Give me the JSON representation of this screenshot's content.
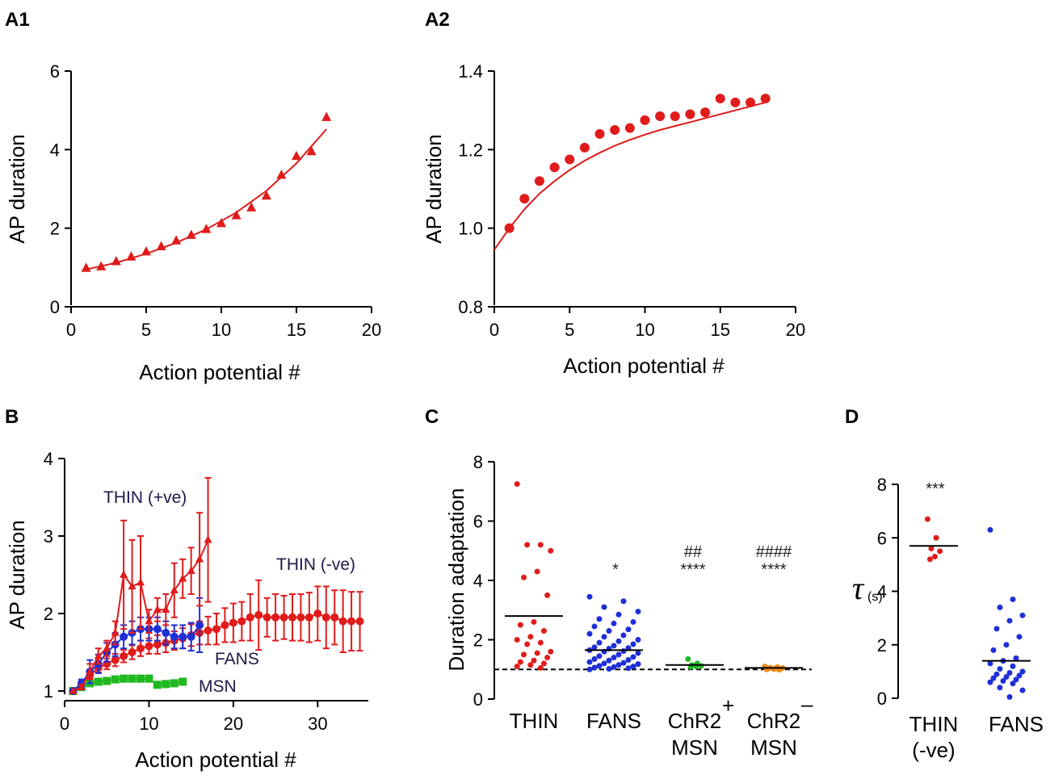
{
  "colors": {
    "thin": "#e01b1b",
    "fans": "#1f2fd6",
    "msn": "#1fb81f",
    "chr2neg": "#f08a1a",
    "axis": "#000000"
  },
  "chart_data": [
    {
      "type": "scatter",
      "panel": "A1",
      "marker": "triangle",
      "xlabel": "Action potential #",
      "ylabel": "AP duration",
      "xlim": [
        0,
        20
      ],
      "ylim": [
        0,
        6
      ],
      "xticks": [
        "0",
        "5",
        "10",
        "15",
        "20"
      ],
      "yticks": [
        "0",
        "2",
        "4",
        "6"
      ],
      "x": [
        1,
        2,
        3,
        4,
        5,
        6,
        7,
        8,
        9,
        10,
        11,
        12,
        13,
        14,
        15,
        16,
        17
      ],
      "y": [
        0.98,
        1.02,
        1.15,
        1.27,
        1.4,
        1.53,
        1.68,
        1.82,
        1.97,
        2.12,
        2.32,
        2.52,
        2.82,
        3.35,
        3.83,
        3.95,
        4.82
      ],
      "fit": {
        "x": [
          1,
          3,
          5,
          7,
          9,
          11,
          13,
          15,
          17
        ],
        "y": [
          0.95,
          1.12,
          1.35,
          1.63,
          1.97,
          2.4,
          2.95,
          3.65,
          4.52
        ]
      }
    },
    {
      "type": "scatter",
      "panel": "A2",
      "marker": "circle",
      "xlabel": "Action potential #",
      "ylabel": "AP duration",
      "xlim": [
        0,
        20
      ],
      "ylim": [
        0.8,
        1.4
      ],
      "xticks": [
        "0",
        "5",
        "10",
        "15",
        "20"
      ],
      "yticks": [
        "0.8",
        "1.0",
        "1.2",
        "1.4"
      ],
      "x": [
        1,
        2,
        3,
        4,
        5,
        6,
        7,
        8,
        9,
        10,
        11,
        12,
        13,
        14,
        15,
        16,
        17,
        18
      ],
      "y": [
        1.0,
        1.075,
        1.12,
        1.155,
        1.175,
        1.205,
        1.24,
        1.25,
        1.255,
        1.275,
        1.285,
        1.285,
        1.29,
        1.295,
        1.33,
        1.32,
        1.32,
        1.33
      ],
      "fit": {
        "x": [
          0,
          1,
          2,
          3,
          4,
          5,
          6,
          7,
          8,
          9,
          10,
          11,
          12,
          13,
          14,
          15,
          16,
          17,
          18
        ],
        "y": [
          0.945,
          1.0,
          1.048,
          1.088,
          1.12,
          1.148,
          1.172,
          1.192,
          1.21,
          1.225,
          1.238,
          1.25,
          1.26,
          1.27,
          1.28,
          1.29,
          1.3,
          1.31,
          1.32
        ]
      }
    },
    {
      "type": "line",
      "panel": "B",
      "xlabel": "Action potential #",
      "ylabel": "AP duration",
      "xlim": [
        0,
        36
      ],
      "ylim": [
        1,
        4
      ],
      "xticks": [
        "0",
        "10",
        "20",
        "30"
      ],
      "yticks": [
        "1",
        "2",
        "3",
        "4"
      ],
      "series": [
        {
          "name": "THIN (+ve)",
          "marker": "triangle",
          "x": [
            1,
            2,
            3,
            4,
            5,
            6,
            7,
            8,
            9,
            10,
            11,
            12,
            13,
            14,
            15,
            16,
            17
          ],
          "y": [
            1.0,
            1.05,
            1.25,
            1.45,
            1.55,
            1.75,
            2.5,
            2.35,
            2.4,
            1.9,
            2.05,
            2.05,
            2.3,
            2.45,
            2.55,
            2.7,
            2.95
          ],
          "err": [
            0,
            0.03,
            0.1,
            0.1,
            0.1,
            0.15,
            0.7,
            0.6,
            0.6,
            0.15,
            0.15,
            0.2,
            0.35,
            0.25,
            0.3,
            0.6,
            0.8
          ]
        },
        {
          "name": "FANS",
          "marker": "circle",
          "x": [
            1,
            2,
            3,
            4,
            5,
            6,
            7,
            8,
            9,
            10,
            11,
            12,
            13,
            14,
            15,
            16
          ],
          "y": [
            1.0,
            1.1,
            1.25,
            1.35,
            1.5,
            1.6,
            1.7,
            1.75,
            1.8,
            1.8,
            1.8,
            1.75,
            1.7,
            1.7,
            1.7,
            1.85
          ],
          "err": [
            0,
            0.05,
            0.15,
            0.12,
            0.12,
            0.15,
            0.15,
            0.15,
            0.15,
            0.15,
            0.15,
            0.15,
            0.15,
            0.15,
            0.18,
            0.35
          ]
        },
        {
          "name": "THIN (-ve)",
          "marker": "circle",
          "x": [
            1,
            2,
            3,
            4,
            5,
            6,
            7,
            8,
            9,
            10,
            11,
            12,
            13,
            14,
            15,
            16,
            17,
            18,
            19,
            20,
            21,
            22,
            23,
            24,
            25,
            26,
            27,
            28,
            29,
            30,
            31,
            32,
            33,
            34,
            35
          ],
          "y": [
            1.0,
            1.1,
            1.2,
            1.3,
            1.35,
            1.4,
            1.45,
            1.5,
            1.55,
            1.58,
            1.6,
            1.62,
            1.65,
            1.68,
            1.72,
            1.75,
            1.78,
            1.8,
            1.85,
            1.88,
            1.9,
            1.95,
            1.98,
            1.95,
            1.95,
            1.95,
            1.95,
            1.95,
            1.95,
            2.0,
            1.95,
            1.95,
            1.9,
            1.9,
            1.9
          ],
          "err": [
            0,
            0.02,
            0.05,
            0.06,
            0.07,
            0.08,
            0.08,
            0.09,
            0.1,
            0.1,
            0.12,
            0.12,
            0.12,
            0.13,
            0.14,
            0.15,
            0.18,
            0.2,
            0.22,
            0.25,
            0.25,
            0.3,
            0.45,
            0.25,
            0.3,
            0.28,
            0.3,
            0.3,
            0.32,
            0.35,
            0.4,
            0.35,
            0.4,
            0.38,
            0.38
          ]
        },
        {
          "name": "MSN",
          "marker": "square",
          "x": [
            1,
            2,
            3,
            4,
            5,
            6,
            7,
            8,
            9,
            10,
            11,
            12,
            13,
            14
          ],
          "y": [
            1.0,
            1.05,
            1.1,
            1.12,
            1.13,
            1.15,
            1.16,
            1.16,
            1.16,
            1.16,
            1.08,
            1.09,
            1.1,
            1.12
          ],
          "err": [
            0,
            0.02,
            0.02,
            0.02,
            0.02,
            0.02,
            0.02,
            0.02,
            0.02,
            0.02,
            0.02,
            0.02,
            0.02,
            0.02
          ]
        }
      ],
      "annotations": [
        "THIN (+ve)",
        "THIN (-ve)",
        "FANS",
        "MSN"
      ]
    },
    {
      "type": "scatter",
      "panel": "C",
      "ylabel": "Duration adaptation",
      "ylim": [
        0,
        8
      ],
      "yticks": [
        "0",
        "2",
        "4",
        "6",
        "8"
      ],
      "reference_line": 1.0,
      "groups": [
        {
          "name": "THIN",
          "label2": "",
          "sup": "",
          "mean": 2.8,
          "stars": "",
          "hashes": "",
          "values": [
            7.25,
            5.2,
            5.2,
            5.0,
            4.3,
            4.1,
            3.5,
            2.6,
            2.5,
            2.3,
            2.1,
            2.0,
            1.9,
            1.85,
            1.6,
            1.55,
            1.5,
            1.4,
            1.3,
            1.25,
            1.2,
            1.15,
            1.1,
            1.05
          ]
        },
        {
          "name": "FANS",
          "label2": "",
          "sup": "",
          "mean": 1.65,
          "stars": "*",
          "hashes": "",
          "values": [
            3.45,
            3.3,
            3.1,
            2.95,
            2.85,
            2.7,
            2.6,
            2.55,
            2.45,
            2.35,
            2.3,
            2.2,
            2.15,
            2.1,
            2.0,
            1.95,
            1.9,
            1.85,
            1.8,
            1.75,
            1.72,
            1.7,
            1.65,
            1.62,
            1.6,
            1.55,
            1.5,
            1.45,
            1.42,
            1.4,
            1.35,
            1.32,
            1.3,
            1.25,
            1.22,
            1.2,
            1.18,
            1.15,
            1.12,
            1.1,
            1.08,
            1.06,
            1.04,
            1.02,
            1.0
          ]
        },
        {
          "name": "ChR2",
          "label2": "MSN",
          "sup": "+",
          "mean": 1.15,
          "stars": "****",
          "hashes": "##",
          "values": [
            1.35,
            1.2,
            1.15,
            1.12,
            1.1,
            1.08
          ]
        },
        {
          "name": "ChR2",
          "label2": "MSN",
          "sup": "–",
          "mean": 1.05,
          "stars": "****",
          "hashes": "####",
          "values": [
            1.1,
            1.08,
            1.06,
            1.05,
            1.04,
            1.03,
            1.02,
            1.01,
            1.0,
            0.99
          ]
        }
      ]
    },
    {
      "type": "scatter",
      "panel": "D",
      "ylabel_symbol": "τ",
      "ylabel_unit": "(s)",
      "ylim": [
        0,
        8
      ],
      "yticks": [
        "0",
        "2",
        "4",
        "6",
        "8"
      ],
      "groups": [
        {
          "name": "THIN",
          "label2": "(-ve)",
          "mean": 5.7,
          "stars": "***",
          "values": [
            6.7,
            6.0,
            5.6,
            5.5,
            5.3,
            5.2
          ]
        },
        {
          "name": "FANS",
          "label2": "",
          "mean": 1.4,
          "stars": "",
          "values": [
            6.3,
            3.7,
            3.4,
            3.1,
            2.9,
            2.6,
            2.3,
            2.0,
            1.8,
            1.5,
            1.4,
            1.3,
            1.2,
            1.1,
            1.0,
            0.95,
            0.9,
            0.85,
            0.8,
            0.75,
            0.7,
            0.65,
            0.6,
            0.55,
            0.4,
            0.3,
            0.05
          ]
        }
      ]
    }
  ]
}
